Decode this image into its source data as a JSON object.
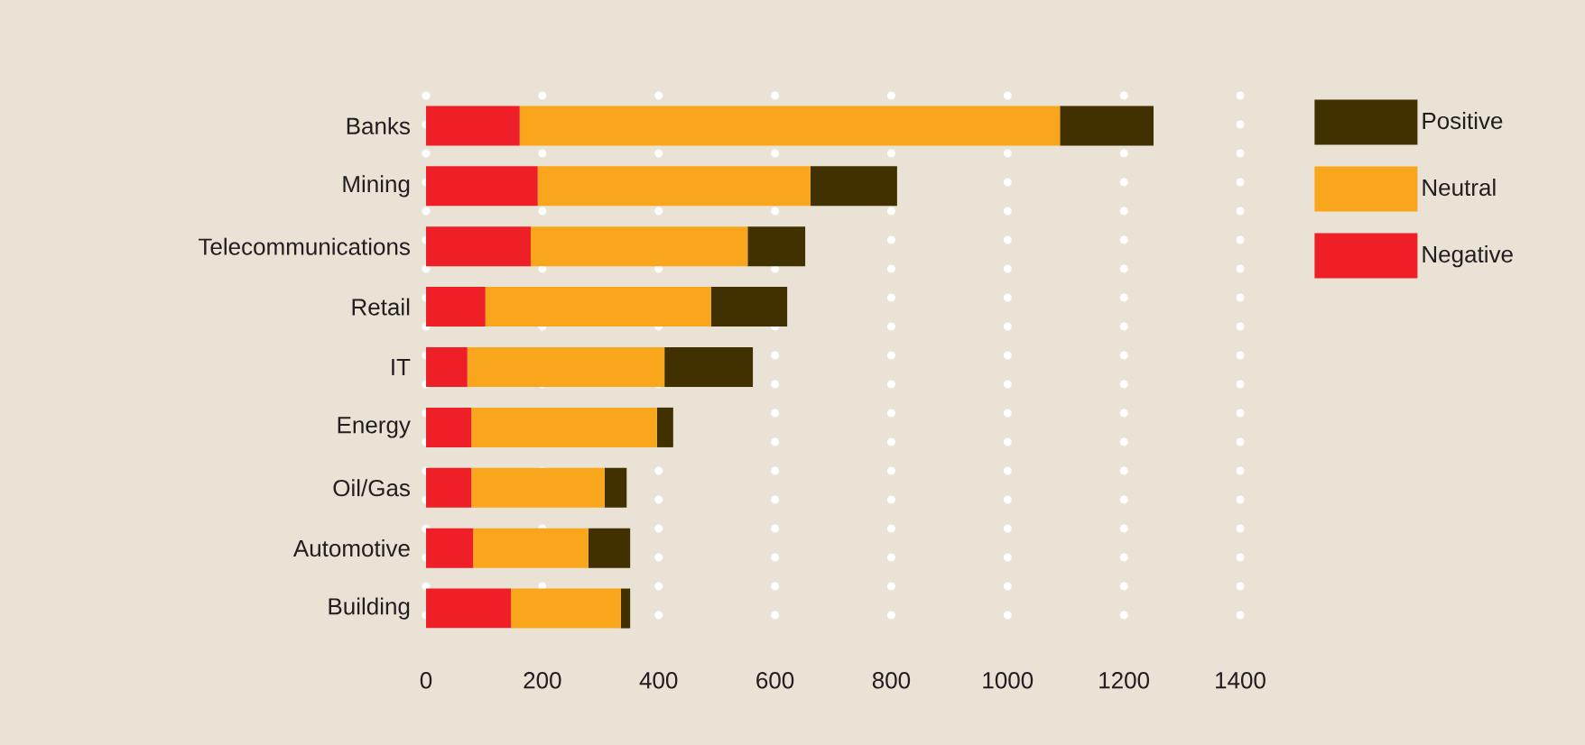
{
  "chart_data": {
    "type": "bar",
    "orientation": "horizontal",
    "stacked": true,
    "categories": [
      "Banks",
      "Mining",
      "Telecommunications",
      "Retail",
      "IT",
      "Energy",
      "Oil/Gas",
      "Automotive",
      "Building"
    ],
    "series": [
      {
        "name": "Negative",
        "color": "#ee1f26",
        "values": [
          161,
          192,
          180,
          102,
          71,
          78,
          78,
          81,
          146
        ]
      },
      {
        "name": "Neutral",
        "color": "#f9a61d",
        "values": [
          929,
          469,
          373,
          388,
          339,
          319,
          229,
          198,
          189
        ]
      },
      {
        "name": "Positive",
        "color": "#413000",
        "values": [
          161,
          149,
          99,
          131,
          152,
          28,
          38,
          72,
          16
        ]
      }
    ],
    "xlim": [
      0,
      1400
    ],
    "xticks": [
      0,
      200,
      400,
      600,
      800,
      1000,
      1200,
      1400
    ],
    "grid": "x",
    "legend": "top right"
  }
}
